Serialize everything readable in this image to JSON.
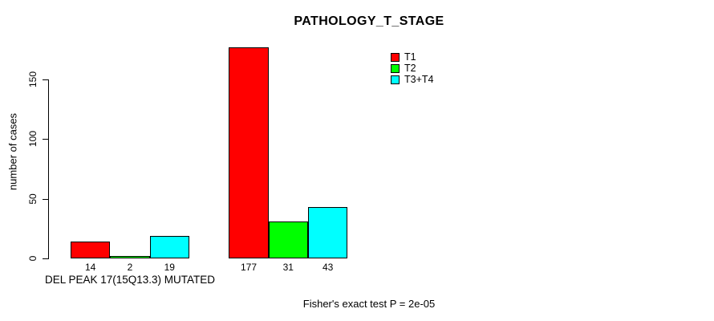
{
  "chart_data": {
    "type": "bar",
    "title": "PATHOLOGY_T_STAGE",
    "ylabel": "number of cases",
    "xlabel": "",
    "ylim": [
      0,
      180
    ],
    "yticks": [
      0,
      50,
      100,
      150
    ],
    "grid": false,
    "legend_position": "top-right",
    "categories": [
      "DEL PEAK 17(15Q13.3) MUTATED",
      ""
    ],
    "series": [
      {
        "name": "T1",
        "color": "#FF0000",
        "values": [
          14,
          177
        ]
      },
      {
        "name": "T2",
        "color": "#00FF00",
        "values": [
          2,
          31
        ]
      },
      {
        "name": "T3+T4",
        "color": "#00FFFF",
        "values": [
          19,
          43
        ]
      }
    ],
    "footnote": "Fisher's exact test P = 2e-05"
  }
}
